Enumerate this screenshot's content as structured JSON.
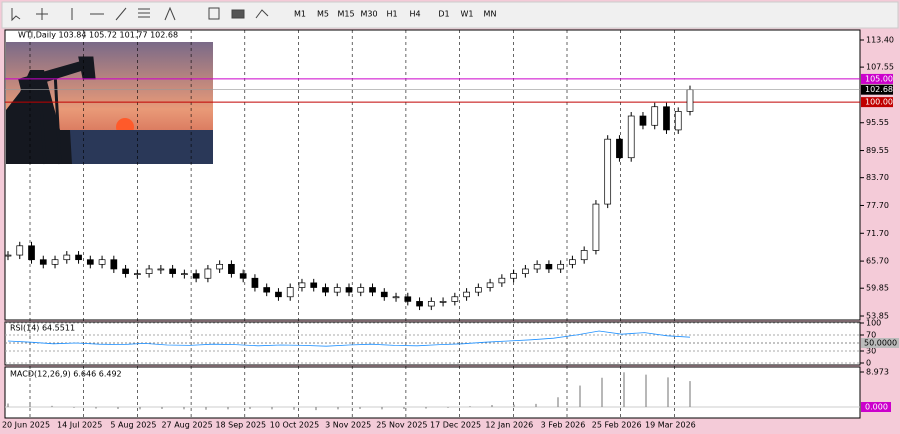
{
  "toolbar": {
    "timeframes": [
      "M1",
      "M5",
      "M15",
      "M30",
      "H1",
      "H4",
      "D1",
      "W1",
      "MN"
    ]
  },
  "chart": {
    "header": "WTI,Daily  103.84 105.72 101.77 102.68",
    "price_labels": [
      {
        "value": 113.4,
        "label": "113.40"
      },
      {
        "value": 107.55,
        "label": "107.55"
      },
      {
        "value": 95.55,
        "label": "95.55"
      },
      {
        "value": 89.55,
        "label": "89.55"
      },
      {
        "value": 83.7,
        "label": "83.70"
      },
      {
        "value": 77.7,
        "label": "77.70"
      },
      {
        "value": 71.7,
        "label": "71.70"
      },
      {
        "value": 65.7,
        "label": "65.70"
      },
      {
        "value": 59.85,
        "label": "59.85"
      },
      {
        "value": 53.85,
        "label": "53.85"
      }
    ],
    "levels": [
      {
        "value": 105,
        "label": "105.00",
        "color": "#cc00cc"
      },
      {
        "value": 100,
        "label": "100.00",
        "color": "#c00000"
      }
    ],
    "last": {
      "value": 102.68,
      "label": "102.68"
    },
    "closes": [
      67,
      69,
      66,
      65,
      66,
      67,
      66,
      65,
      66,
      64,
      63,
      63,
      64,
      64,
      63,
      63,
      62,
      64,
      65,
      63,
      62,
      60,
      59,
      58,
      60,
      61,
      60,
      59,
      60,
      59,
      60,
      59,
      58,
      58,
      57,
      56,
      57,
      57,
      58,
      59,
      60,
      61,
      62,
      63,
      64,
      65,
      64,
      65,
      66,
      68,
      78,
      92,
      88,
      97,
      95,
      99,
      94,
      98,
      102.68
    ],
    "dates": [
      "20 Jun 2025",
      "14 Jul 2025",
      "5 Aug 2025",
      "27 Aug 2025",
      "18 Sep 2025",
      "10 Oct 2025",
      "3 Nov 2025",
      "25 Nov 2025",
      "17 Dec 2025",
      "12 Jan 2026",
      "3 Feb 2026",
      "25 Feb 2026",
      "19 Mar 2026"
    ]
  },
  "rsi": {
    "label": "RSI(14) 64.5511",
    "ticks": [
      {
        "value": 100,
        "label": "100"
      },
      {
        "value": 70,
        "label": "70"
      },
      {
        "value": 30,
        "label": "30"
      },
      {
        "value": 0,
        "label": "0"
      }
    ],
    "level": {
      "value": 50,
      "label": "50.0000"
    },
    "values": [
      55,
      52,
      48,
      50,
      47,
      46,
      49,
      45,
      44,
      47,
      46,
      43,
      45,
      44,
      42,
      45,
      47,
      44,
      43,
      46,
      48,
      52,
      55,
      58,
      62,
      70,
      80,
      72,
      76,
      68,
      64.5511
    ]
  },
  "macd": {
    "label": "MACD(12,26,9) 6.646 6.492",
    "top": {
      "value": 8.973,
      "label": "8.973"
    },
    "zero": {
      "value": 0,
      "label": "0.000"
    },
    "values": [
      0.9,
      0.7,
      0.3,
      -0.2,
      -0.4,
      -0.5,
      -0.6,
      -0.5,
      -0.6,
      -0.7,
      -0.6,
      -0.5,
      -0.6,
      -0.7,
      -0.8,
      -0.6,
      -0.5,
      -0.6,
      -0.5,
      -0.4,
      -0.2,
      0.2,
      0.5,
      0.6,
      0.8,
      2.5,
      5.5,
      7.5,
      8.9,
      8.3,
      7.6,
      6.646
    ]
  }
}
